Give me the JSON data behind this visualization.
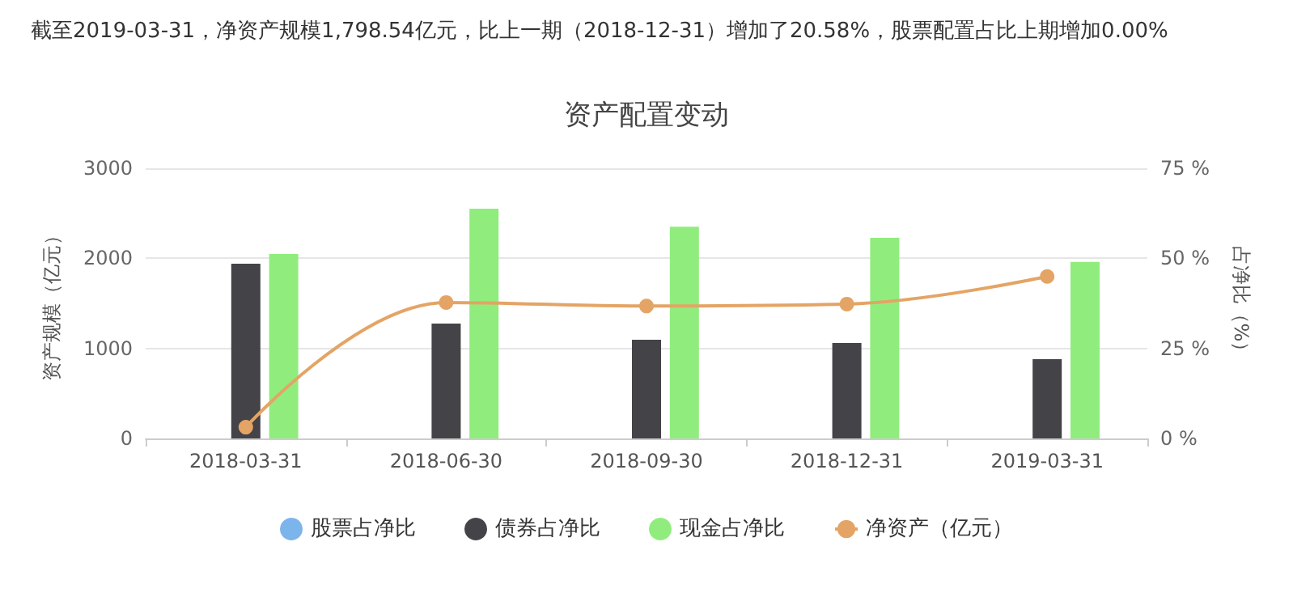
{
  "chart_data": {
    "type": "bar",
    "title": "资产配置变动",
    "subtitle": "截至2019-03-31，净资产规模1,798.54亿元，比上一期（2018-12-31）增加了20.58%，股票配置占比上期增加0.00%",
    "ylabel": "资产规模（亿元）",
    "y2label": "占净比（%）",
    "categories": [
      "2018-03-31",
      "2018-06-30",
      "2018-09-30",
      "2018-12-31",
      "2019-03-31"
    ],
    "series": [
      {
        "name": "股票占净比",
        "color": "#7cb5ec",
        "axis": "y2",
        "values": [
          0,
          0,
          0,
          0,
          0
        ]
      },
      {
        "name": "债券占净比",
        "color": "#434348",
        "axis": "y2",
        "values": [
          48.5,
          31.9,
          27.4,
          26.5,
          22.0
        ]
      },
      {
        "name": "现金占净比",
        "color": "#90ed7d",
        "axis": "y2",
        "values": [
          51.2,
          63.8,
          58.8,
          55.7,
          49.0
        ]
      },
      {
        "name": "净资产（亿元）",
        "type": "line",
        "color": "#e4a465",
        "values": [
          125,
          1510,
          1470,
          1492,
          1798.54
        ]
      }
    ],
    "ylim": [
      0,
      3000
    ],
    "yticks": [
      0,
      1000,
      2000,
      3000
    ],
    "y2lim": [
      0,
      75
    ],
    "y2ticks": [
      {
        "value": 0,
        "label": "0 %"
      },
      {
        "value": 25,
        "label": "25 %"
      },
      {
        "value": 50,
        "label": "50 %"
      },
      {
        "value": 75,
        "label": "75 %"
      }
    ],
    "grid": "y",
    "legend": "bottom",
    "marker": "circle",
    "line_style": "solid"
  }
}
